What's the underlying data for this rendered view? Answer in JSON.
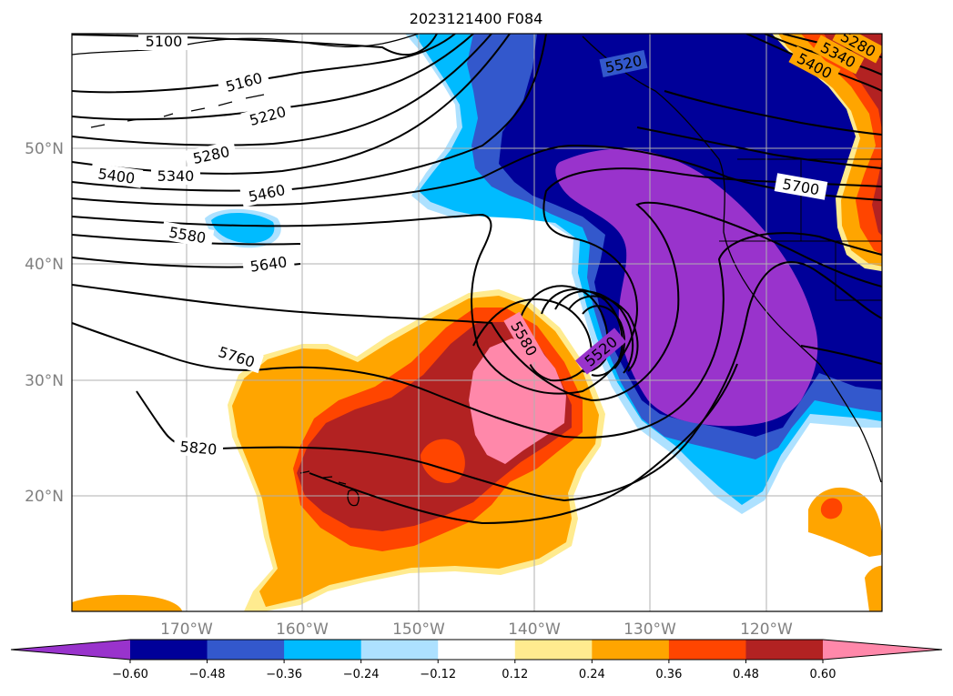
{
  "title": "2023121400 F084",
  "map": {
    "lat_labels": [
      "50°N",
      "40°N",
      "30°N",
      "20°N"
    ],
    "lon_labels": [
      "170°W",
      "160°W",
      "150°W",
      "140°W",
      "130°W",
      "120°W"
    ],
    "contour_labels": [
      "5100",
      "5160",
      "5220",
      "5280",
      "5340",
      "5400",
      "5460",
      "5580",
      "5640",
      "5760",
      "5820",
      "5580",
      "5520",
      "5520",
      "5700",
      "5400",
      "5340",
      "5280"
    ],
    "colors": {
      "purple": "#9933CC",
      "navy": "#000099",
      "royal_blue": "#3358CC",
      "deep_sky": "#00BBFF",
      "light_blue": "#ADE1FF",
      "pale_yellow": "#FFEB8F",
      "orange": "#FFA500",
      "orange_red": "#FF4500",
      "firebrick": "#B22222",
      "pink": "#FF88AA"
    }
  },
  "colorbar": {
    "tick_labels": [
      "−0.60",
      "−0.48",
      "−0.36",
      "−0.24",
      "−0.12",
      "0.12",
      "0.24",
      "0.36",
      "0.48",
      "0.60"
    ],
    "bin_colors": [
      "#9933CC",
      "#000099",
      "#3358CC",
      "#00BBFF",
      "#ADE1FF",
      "#FFFFFF",
      "#FFEB8F",
      "#FFA500",
      "#FF4500",
      "#B22222",
      "#FF88AA"
    ]
  }
}
